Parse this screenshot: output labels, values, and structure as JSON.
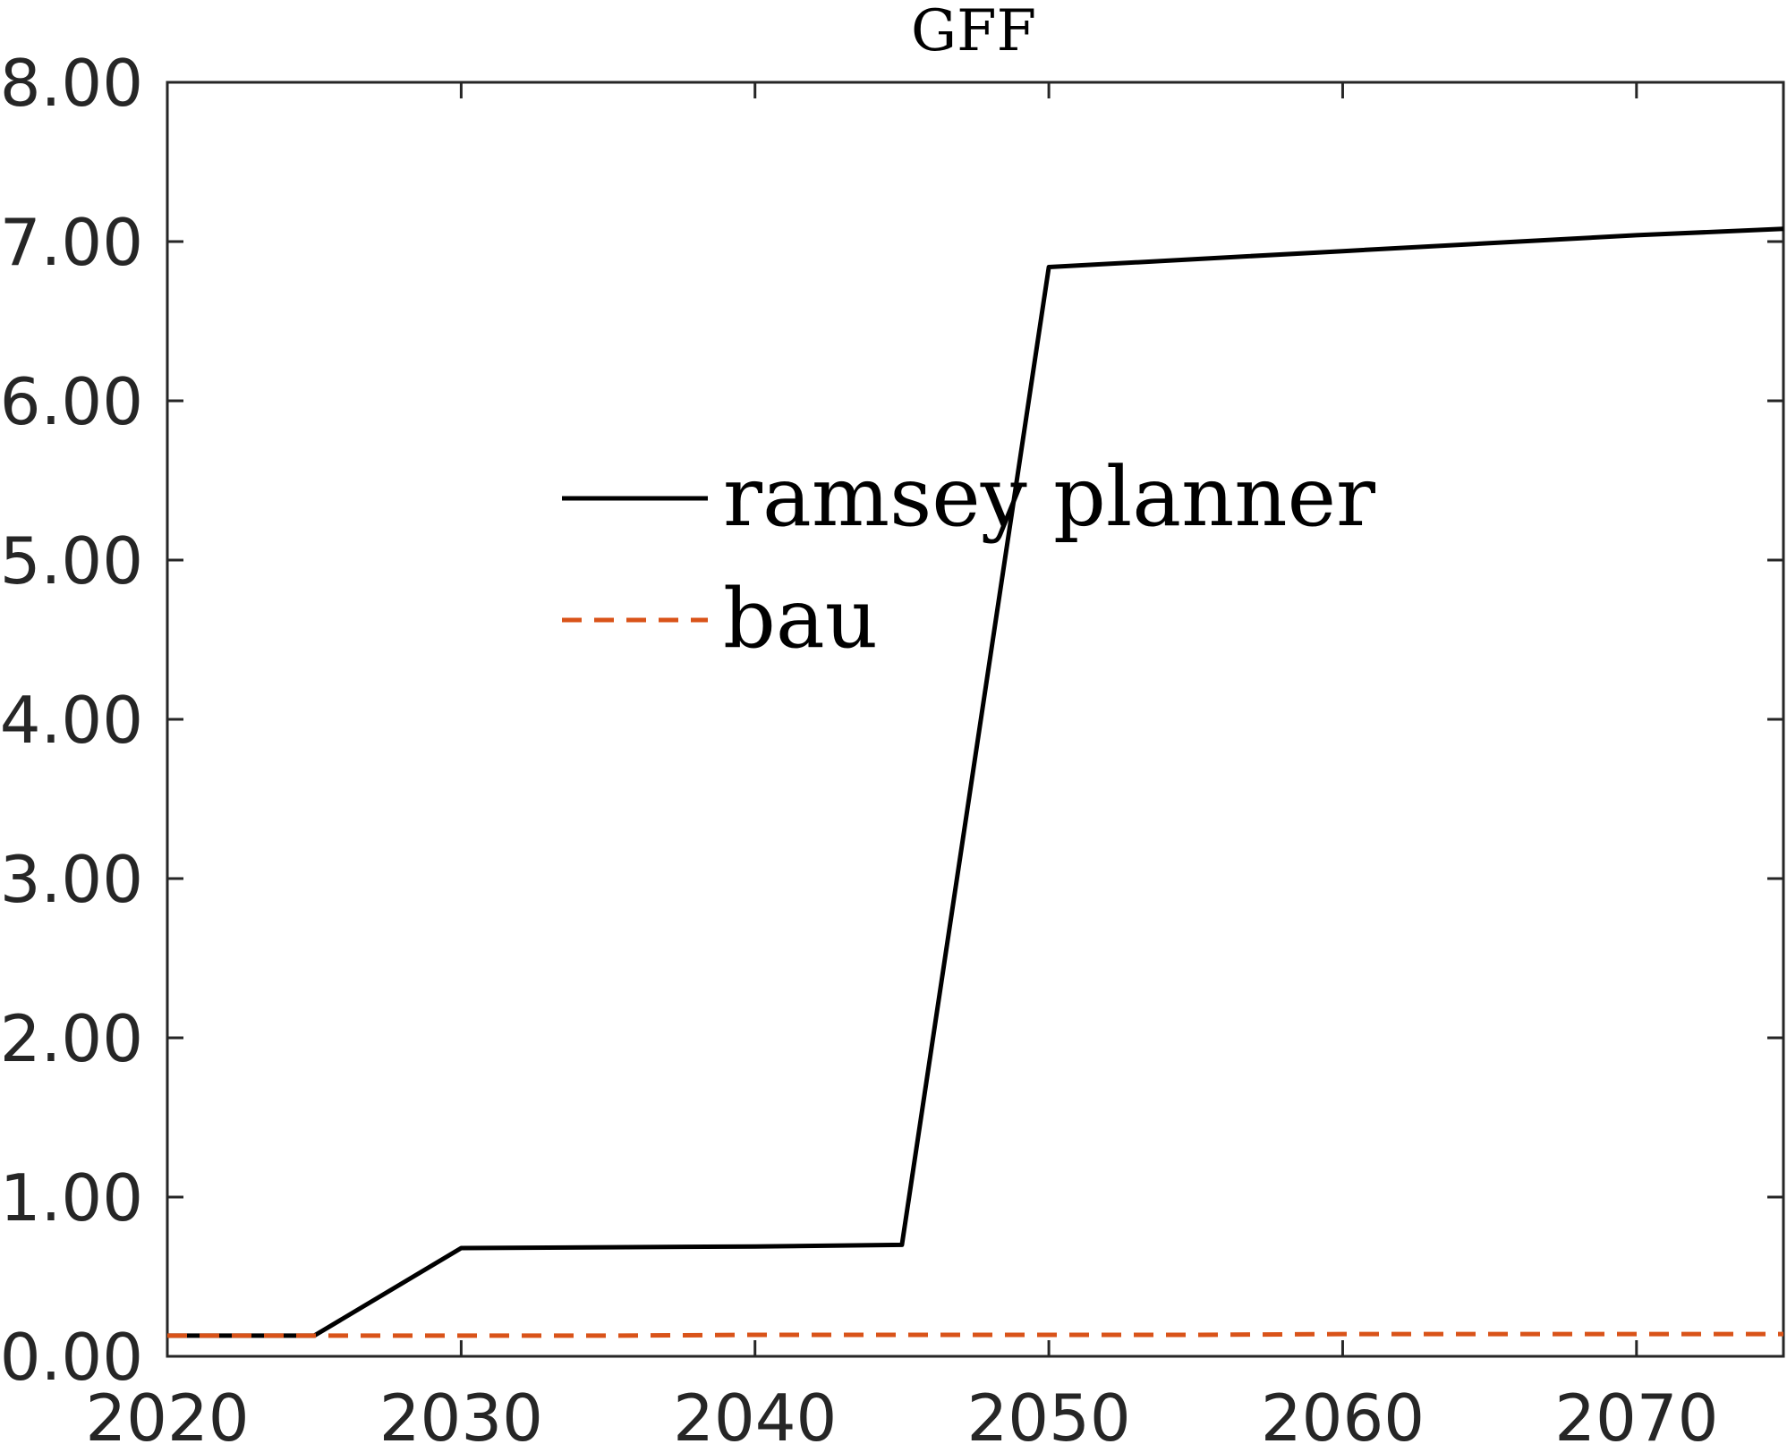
{
  "chart_data": {
    "type": "line",
    "title": "GFF",
    "xlabel": "",
    "ylabel": "",
    "xlim": [
      2020,
      2075
    ],
    "ylim": [
      0,
      8
    ],
    "xticks": [
      2020,
      2030,
      2040,
      2050,
      2060,
      2070
    ],
    "yticks": [
      0,
      1,
      2,
      3,
      4,
      5,
      6,
      7,
      8
    ],
    "xtick_labels": [
      "2020",
      "2030",
      "2040",
      "2050",
      "2060",
      "2070"
    ],
    "ytick_labels": [
      "0.00",
      "1.00",
      "2.00",
      "3.00",
      "4.00",
      "5.00",
      "6.00",
      "7.00",
      "8.00"
    ],
    "grid": false,
    "legend_position": "center",
    "series": [
      {
        "name": "ramsey planner",
        "color": "#000000",
        "style": "solid",
        "x": [
          2020,
          2025,
          2030,
          2035,
          2040,
          2045,
          2050,
          2055,
          2060,
          2065,
          2070,
          2075
        ],
        "y": [
          0.13,
          0.13,
          0.68,
          0.685,
          0.69,
          0.7,
          6.84,
          6.89,
          6.94,
          6.99,
          7.04,
          7.08
        ]
      },
      {
        "name": "bau",
        "color": "#D95319",
        "style": "dashed",
        "x": [
          2020,
          2025,
          2030,
          2035,
          2040,
          2045,
          2050,
          2055,
          2060,
          2065,
          2070,
          2075
        ],
        "y": [
          0.13,
          0.13,
          0.13,
          0.13,
          0.135,
          0.135,
          0.135,
          0.135,
          0.14,
          0.14,
          0.14,
          0.14
        ]
      }
    ]
  }
}
